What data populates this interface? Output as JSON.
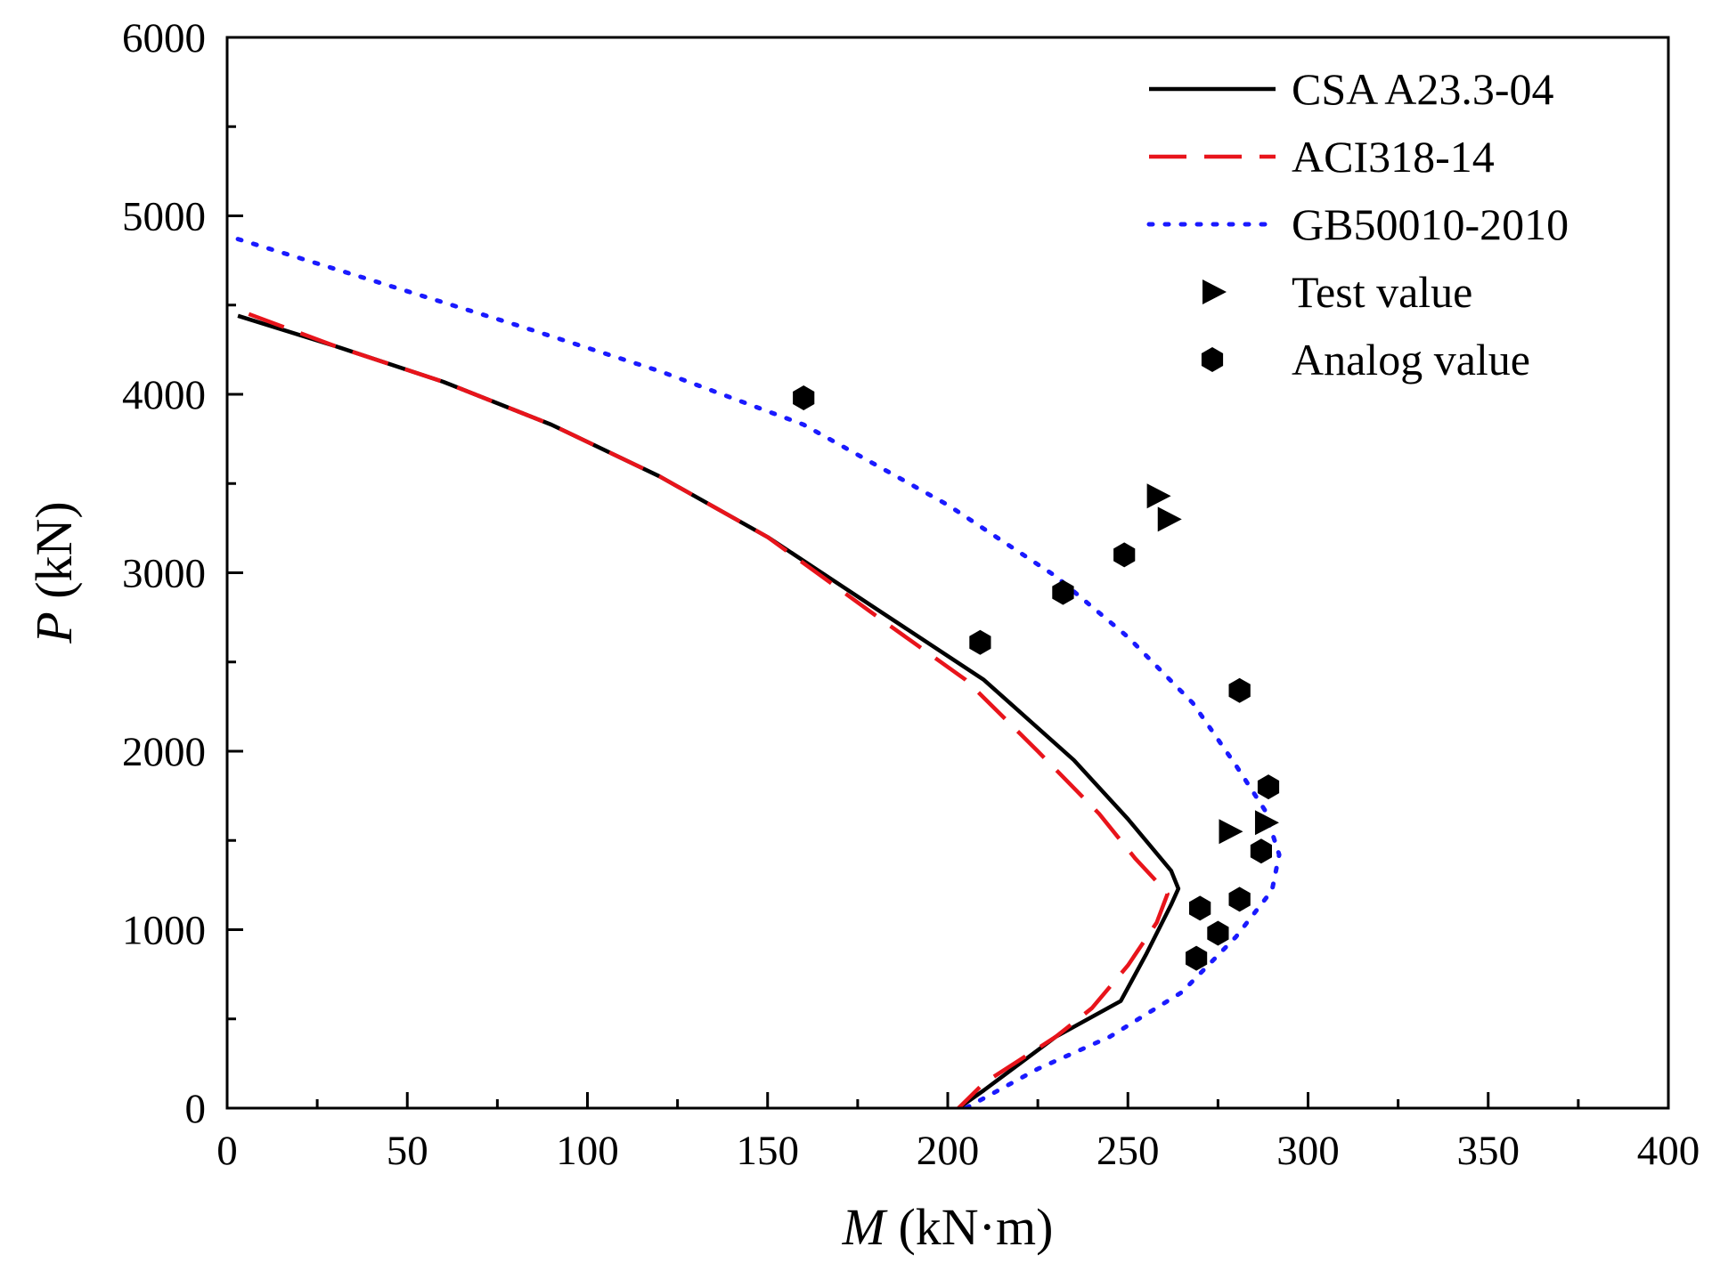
{
  "chart_data": {
    "type": "line",
    "title": "",
    "xlabel": {
      "symbol": "M",
      "unit": "(kN·m)"
    },
    "ylabel": {
      "symbol": "P",
      "unit": "(kN)"
    },
    "xlim": [
      0,
      400
    ],
    "ylim": [
      0,
      6000
    ],
    "xticks": [
      0,
      50,
      100,
      150,
      200,
      250,
      300,
      350,
      400
    ],
    "yticks": [
      0,
      1000,
      2000,
      3000,
      4000,
      5000,
      6000
    ],
    "x_minor_step": 25,
    "y_minor_step": 500,
    "grid": false,
    "legend_position": "top-right",
    "series": [
      {
        "name": "CSA A23.3-04",
        "kind": "line",
        "style": "solid",
        "color": "#000000",
        "points": [
          [
            3,
            4440
          ],
          [
            30,
            4270
          ],
          [
            60,
            4070
          ],
          [
            90,
            3830
          ],
          [
            120,
            3540
          ],
          [
            150,
            3200
          ],
          [
            180,
            2800
          ],
          [
            210,
            2400
          ],
          [
            235,
            1950
          ],
          [
            250,
            1620
          ],
          [
            262,
            1330
          ],
          [
            264,
            1230
          ],
          [
            262,
            1140
          ],
          [
            255,
            860
          ],
          [
            248,
            600
          ],
          [
            230,
            400
          ],
          [
            210,
            100
          ],
          [
            203,
            0
          ]
        ]
      },
      {
        "name": "ACI318-14",
        "kind": "line",
        "style": "dashed",
        "color": "#e8141b",
        "points": [
          [
            6,
            4450
          ],
          [
            30,
            4270
          ],
          [
            60,
            4070
          ],
          [
            90,
            3830
          ],
          [
            120,
            3540
          ],
          [
            150,
            3200
          ],
          [
            180,
            2760
          ],
          [
            205,
            2400
          ],
          [
            225,
            2000
          ],
          [
            242,
            1650
          ],
          [
            252,
            1400
          ],
          [
            258,
            1270
          ],
          [
            261,
            1200
          ],
          [
            258,
            1040
          ],
          [
            250,
            800
          ],
          [
            240,
            560
          ],
          [
            230,
            400
          ],
          [
            210,
            140
          ],
          [
            203,
            0
          ]
        ]
      },
      {
        "name": "GB50010-2010",
        "kind": "line",
        "style": "dotted",
        "color": "#1a1aff",
        "points": [
          [
            3,
            4870
          ],
          [
            40,
            4640
          ],
          [
            80,
            4390
          ],
          [
            120,
            4130
          ],
          [
            160,
            3830
          ],
          [
            200,
            3380
          ],
          [
            230,
            2980
          ],
          [
            250,
            2640
          ],
          [
            268,
            2270
          ],
          [
            280,
            1920
          ],
          [
            288,
            1670
          ],
          [
            292,
            1420
          ],
          [
            290,
            1220
          ],
          [
            280,
            960
          ],
          [
            265,
            650
          ],
          [
            245,
            400
          ],
          [
            225,
            220
          ],
          [
            205,
            0
          ]
        ]
      },
      {
        "name": "Test value",
        "kind": "scatter",
        "marker": "triangle-right",
        "color": "#000000",
        "points": [
          [
            258,
            3430
          ],
          [
            261,
            3300
          ],
          [
            278,
            1550
          ],
          [
            288,
            1600
          ]
        ]
      },
      {
        "name": "Analog value",
        "kind": "scatter",
        "marker": "hexagon",
        "color": "#000000",
        "points": [
          [
            160,
            3980
          ],
          [
            209,
            2610
          ],
          [
            232,
            2890
          ],
          [
            249,
            3100
          ],
          [
            281,
            2340
          ],
          [
            289,
            1800
          ],
          [
            287,
            1440
          ],
          [
            281,
            1170
          ],
          [
            270,
            1120
          ],
          [
            275,
            980
          ],
          [
            269,
            840
          ]
        ]
      }
    ]
  }
}
